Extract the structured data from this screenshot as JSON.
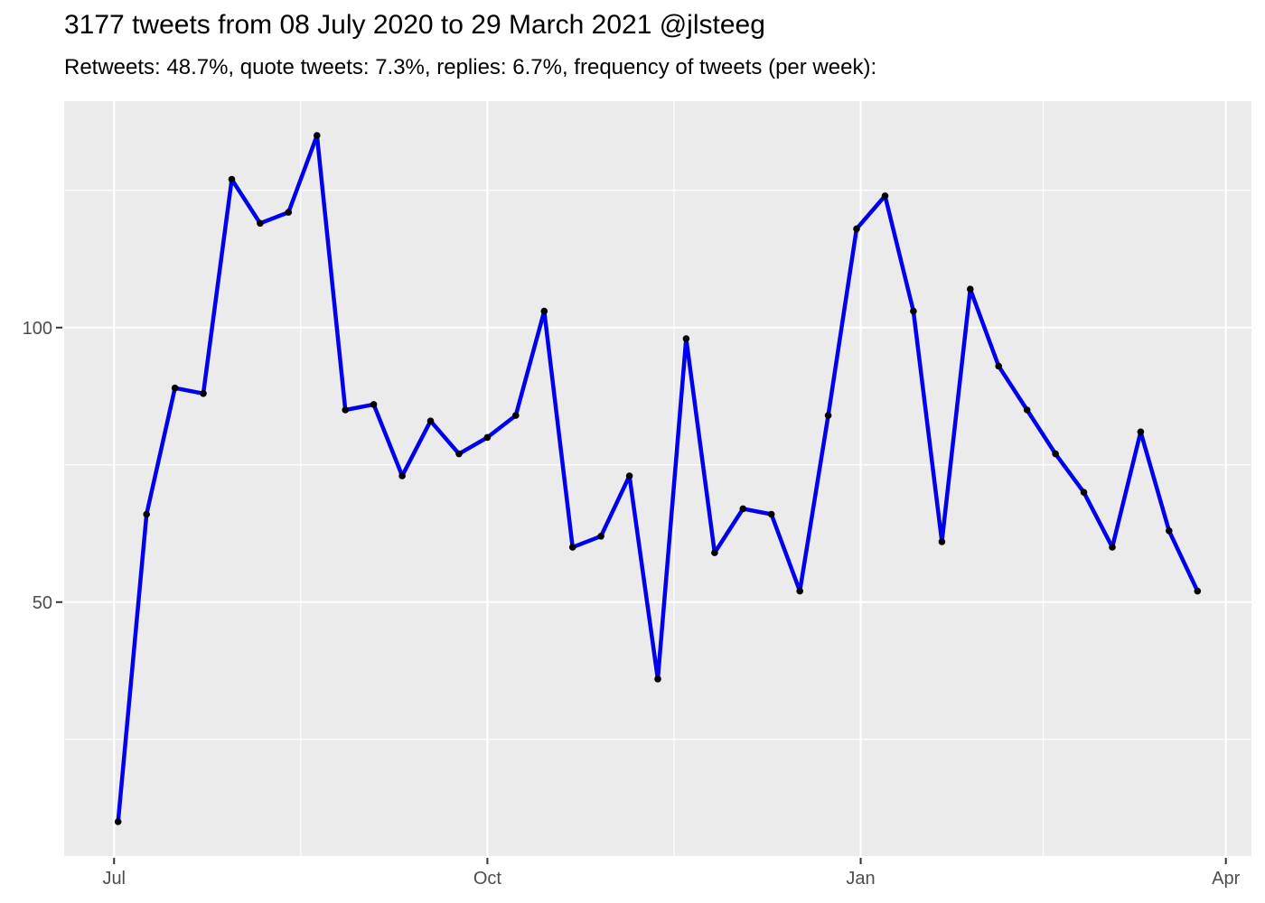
{
  "header": {
    "title": "3177 tweets from 08 July 2020 to 29 March 2021 @jlsteeg",
    "subtitle": "Retweets: 48.7%, quote tweets: 7.3%, replies: 6.7%, frequency of tweets (per week):"
  },
  "stats": {
    "total_tweets": 3177,
    "date_range_start": "08 July 2020",
    "date_range_end": "29 March 2021",
    "account": "@jlsteeg",
    "retweets_pct": "48.7%",
    "quote_tweets_pct": "7.3%",
    "replies_pct": "6.7%"
  },
  "chart_data": {
    "type": "line",
    "title": "3177 tweets from 08 July 2020 to 29 March 2021 @jlsteeg",
    "subtitle": "Retweets: 48.7%, quote tweets: 7.3%, replies: 6.7%, frequency of tweets (per week):",
    "xlabel": "",
    "ylabel": "",
    "legend_position": "none",
    "grid": "on",
    "x": [
      "2020-07-02",
      "2020-07-09",
      "2020-07-16",
      "2020-07-23",
      "2020-07-30",
      "2020-08-06",
      "2020-08-13",
      "2020-08-20",
      "2020-08-27",
      "2020-09-03",
      "2020-09-10",
      "2020-09-17",
      "2020-09-24",
      "2020-10-01",
      "2020-10-08",
      "2020-10-15",
      "2020-10-22",
      "2020-10-29",
      "2020-11-05",
      "2020-11-12",
      "2020-11-19",
      "2020-11-26",
      "2020-12-03",
      "2020-12-10",
      "2020-12-17",
      "2020-12-24",
      "2020-12-31",
      "2021-01-07",
      "2021-01-14",
      "2021-01-21",
      "2021-01-28",
      "2021-02-04",
      "2021-02-11",
      "2021-02-18",
      "2021-02-25",
      "2021-03-04",
      "2021-03-11",
      "2021-03-18",
      "2021-03-25"
    ],
    "values": [
      10,
      66,
      89,
      88,
      127,
      119,
      121,
      135,
      85,
      86,
      73,
      83,
      77,
      80,
      84,
      103,
      60,
      62,
      73,
      36,
      98,
      59,
      67,
      66,
      52,
      84,
      118,
      124,
      103,
      61,
      107,
      93,
      85,
      77,
      70,
      60,
      81,
      63,
      52
    ],
    "series_name": "tweets per week",
    "x_tick_dates": [
      "2020-07-01",
      "2020-10-01",
      "2021-01-01",
      "2021-04-01"
    ],
    "x_tick_labels": [
      "Jul",
      "Oct",
      "Jan",
      "Apr"
    ],
    "y_ticks": [
      50,
      100
    ],
    "y_tick_labels": [
      "50",
      "100"
    ],
    "y_minor_ticks": [
      25,
      75,
      125
    ],
    "ylim": [
      3.75,
      141.25
    ],
    "x_expansion": 0.05,
    "colors": {
      "line": "#0000EE",
      "point": "#000000",
      "panel_background": "#EBEBEB",
      "gridline": "#FFFFFF",
      "axis_text": "#4D4D4D",
      "tick_mark": "#333333",
      "title_text": "#000000",
      "page_background": "#FFFFFF"
    }
  }
}
